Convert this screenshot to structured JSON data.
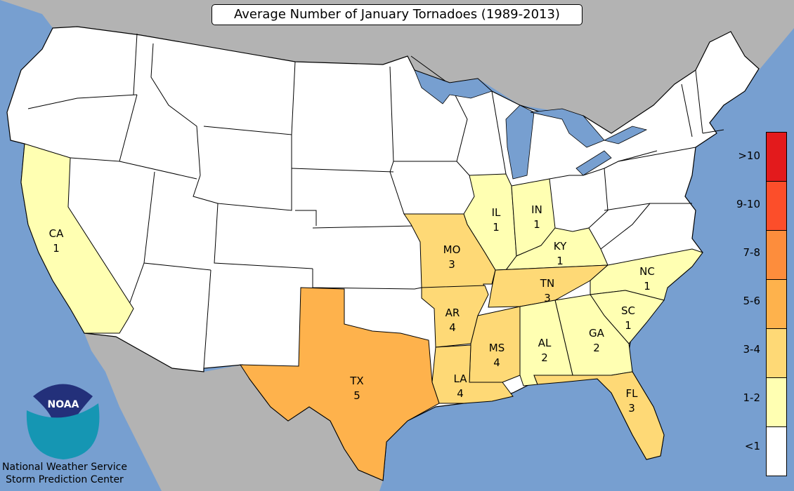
{
  "title": "Average Number of January Tornadoes (1989-2013)",
  "colors": {
    "ocean": "#779fd0",
    "foreign_land": "#b3b3b3",
    "border": "#000000"
  },
  "legend": [
    {
      "label": ">10",
      "color": "#e31a1c"
    },
    {
      "label": "9-10",
      "color": "#fc4e2a"
    },
    {
      "label": "7-8",
      "color": "#fd8d3c"
    },
    {
      "label": "5-6",
      "color": "#feb24c"
    },
    {
      "label": "3-4",
      "color": "#fed976"
    },
    {
      "label": "1-2",
      "color": "#ffffb2"
    },
    {
      "label": "<1",
      "color": "#ffffff"
    }
  ],
  "states": [
    {
      "abbr": "CA",
      "value": "1",
      "category": "1-2"
    },
    {
      "abbr": "IL",
      "value": "1",
      "category": "1-2"
    },
    {
      "abbr": "IN",
      "value": "1",
      "category": "1-2"
    },
    {
      "abbr": "KY",
      "value": "1",
      "category": "1-2"
    },
    {
      "abbr": "MO",
      "value": "3",
      "category": "3-4"
    },
    {
      "abbr": "TN",
      "value": "3",
      "category": "3-4"
    },
    {
      "abbr": "NC",
      "value": "1",
      "category": "1-2"
    },
    {
      "abbr": "SC",
      "value": "1",
      "category": "1-2"
    },
    {
      "abbr": "AR",
      "value": "4",
      "category": "3-4"
    },
    {
      "abbr": "GA",
      "value": "2",
      "category": "1-2"
    },
    {
      "abbr": "AL",
      "value": "2",
      "category": "1-2"
    },
    {
      "abbr": "MS",
      "value": "4",
      "category": "3-4"
    },
    {
      "abbr": "LA",
      "value": "4",
      "category": "3-4"
    },
    {
      "abbr": "TX",
      "value": "5",
      "category": "5-6"
    },
    {
      "abbr": "FL",
      "value": "3",
      "category": "3-4"
    }
  ],
  "logo": {
    "text": "NOAA",
    "line1": "National Weather Service",
    "line2": "Storm Prediction Center"
  }
}
